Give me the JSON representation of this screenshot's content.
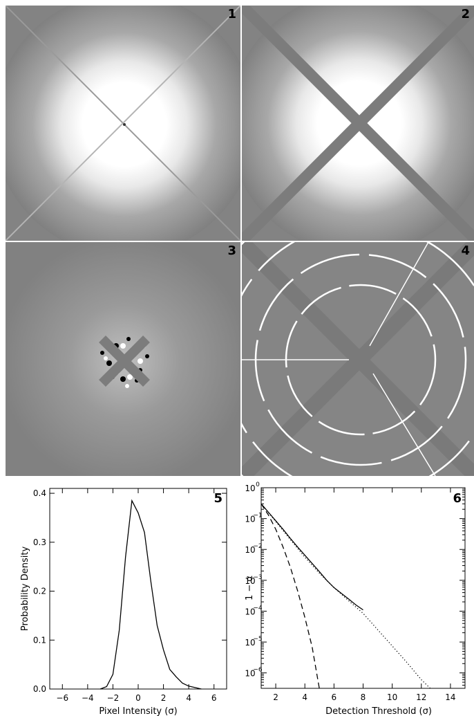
{
  "panels": {
    "p1": {
      "label": "1"
    },
    "p2": {
      "label": "2"
    },
    "p3": {
      "label": "3"
    },
    "p4": {
      "label": "4"
    },
    "p5": {
      "label": "5"
    },
    "p6": {
      "label": "6"
    }
  },
  "chart_data": [
    {
      "type": "line",
      "panel": "5",
      "xlabel": "Pixel Intensity (σ)",
      "ylabel": "Probability Density",
      "xlim": [
        -7,
        7
      ],
      "ylim": [
        0,
        0.41
      ],
      "xticks": [
        -6,
        -4,
        -2,
        0,
        2,
        4,
        6
      ],
      "yticks": [
        0.0,
        0.1,
        0.2,
        0.3,
        0.4
      ],
      "ytick_labels": [
        "0.0",
        "0.1",
        "0.2",
        "0.3",
        "0.4"
      ],
      "series": [
        {
          "style": "solid",
          "x": [
            -3.0,
            -2.5,
            -2.0,
            -1.5,
            -1.0,
            -0.5,
            0.0,
            0.5,
            1.0,
            1.5,
            2.0,
            2.5,
            3.0,
            3.5,
            4.0,
            4.5,
            5.0
          ],
          "y": [
            0.0,
            0.005,
            0.03,
            0.12,
            0.27,
            0.385,
            0.36,
            0.32,
            0.22,
            0.13,
            0.08,
            0.04,
            0.025,
            0.012,
            0.006,
            0.003,
            0.0
          ]
        }
      ]
    },
    {
      "type": "line",
      "panel": "6",
      "xlabel": "Detection Threshold (σ)",
      "ylabel": "1 − α",
      "xlim": [
        1,
        15
      ],
      "ylim_log10": [
        -6.5,
        0
      ],
      "log_y": true,
      "xticks": [
        2,
        4,
        6,
        8,
        10,
        12,
        14
      ],
      "yticks_exp": [
        0,
        -1,
        -2,
        -3,
        -4,
        -5,
        -6
      ],
      "series": [
        {
          "style": "solid",
          "x": [
            1.0,
            1.5,
            2.0,
            2.5,
            3.0,
            3.5,
            4.0,
            4.5,
            5.0,
            5.5,
            6.0,
            6.5,
            7.0,
            7.5,
            8.0
          ],
          "y": [
            0.3,
            0.16,
            0.085,
            0.045,
            0.023,
            0.012,
            0.0065,
            0.0035,
            0.0019,
            0.001,
            0.00058,
            0.00038,
            0.00025,
            0.00016,
            0.00011
          ]
        },
        {
          "style": "dotted",
          "x": [
            1.0,
            2.0,
            3.0,
            4.0,
            5.0,
            6.0,
            7.0,
            8.0,
            9.0,
            10.0,
            11.0,
            12.0,
            12.6
          ],
          "y": [
            0.3,
            0.08,
            0.021,
            0.0056,
            0.0017,
            0.00058,
            0.00022,
            8.5e-05,
            2.5e-05,
            7.5e-06,
            2.2e-06,
            6e-07,
            3.2e-07
          ]
        },
        {
          "style": "dashed",
          "x": [
            1.0,
            1.5,
            2.0,
            2.5,
            3.0,
            3.5,
            4.0,
            4.5,
            5.0
          ],
          "y": [
            0.3,
            0.13,
            0.045,
            0.012,
            0.0027,
            0.00046,
            6.3e-05,
            6.8e-06,
            3e-07
          ]
        }
      ]
    }
  ]
}
